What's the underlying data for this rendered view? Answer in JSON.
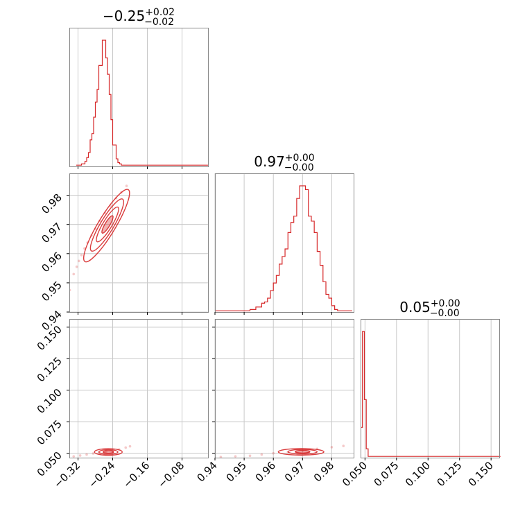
{
  "chart_data": {
    "type": "corner",
    "color": "#d62728",
    "grid": true,
    "parameters": [
      {
        "title": {
          "median": "−0.25",
          "plus": "+0.02",
          "minus": "−0.02"
        },
        "range": [
          -0.34,
          -0.02
        ],
        "ticks": [
          -0.32,
          -0.24,
          -0.16,
          -0.08
        ],
        "tick_labels": [
          "−0.32",
          "−0.24",
          "−0.16",
          "−0.08"
        ],
        "histogram": {
          "bin_edges": [
            -0.324,
            -0.32,
            -0.316,
            -0.312,
            -0.308,
            -0.304,
            -0.3,
            -0.296,
            -0.292,
            -0.288,
            -0.284,
            -0.28,
            -0.276,
            -0.272,
            -0.268,
            -0.264,
            -0.26,
            -0.256,
            -0.252,
            -0.248,
            -0.244,
            -0.24,
            -0.236,
            -0.232,
            -0.228,
            -0.224,
            -0.22,
            -0.216,
            -0.212,
            -0.208,
            -0.204,
            -0.2,
            -0.196,
            -0.192,
            -0.188,
            -0.184,
            -0.18,
            -0.176,
            -0.172,
            -0.168,
            -0.164,
            -0.16,
            -0.156,
            -0.152,
            -0.148,
            -0.144,
            -0.14,
            -0.136,
            -0.132,
            -0.128,
            -0.124,
            -0.12,
            -0.116,
            -0.112,
            -0.108,
            -0.104,
            -0.1,
            -0.096,
            -0.092,
            -0.088,
            -0.084,
            -0.08,
            -0.076,
            -0.072,
            -0.068,
            -0.064,
            -0.06,
            -0.056,
            -0.052,
            -0.048,
            -0.044,
            -0.04,
            -0.036,
            -0.032,
            -0.028,
            -0.024,
            -0.02
          ],
          "counts": [
            1,
            1,
            1,
            2,
            2,
            4,
            7,
            11,
            21,
            26,
            39,
            51,
            61,
            80,
            80,
            100,
            100,
            86,
            73,
            57,
            37,
            17,
            17,
            6,
            3,
            2,
            1,
            1,
            1,
            1,
            1,
            1,
            1,
            1,
            1,
            1,
            1,
            1,
            1,
            1,
            1,
            1,
            1,
            1,
            1,
            1,
            1,
            1,
            1,
            1,
            1,
            1,
            1,
            1,
            1,
            1,
            1,
            1,
            1,
            1,
            1,
            1,
            1,
            1,
            1,
            1,
            1,
            1,
            1,
            1,
            1,
            1,
            1,
            1,
            1,
            1
          ]
        }
      },
      {
        "title": {
          "median": "0.97",
          "plus": "+0.00",
          "minus": "−0.00"
        },
        "range": [
          0.94,
          0.9875
        ],
        "ticks": [
          0.94,
          0.95,
          0.96,
          0.97,
          0.98
        ],
        "tick_labels": [
          "0.94",
          "0.95",
          "0.96",
          "0.97",
          "0.98"
        ],
        "histogram": {
          "bin_edges": [
            0.94,
            0.941,
            0.942,
            0.943,
            0.944,
            0.945,
            0.946,
            0.947,
            0.948,
            0.949,
            0.95,
            0.951,
            0.952,
            0.953,
            0.954,
            0.955,
            0.956,
            0.957,
            0.958,
            0.959,
            0.96,
            0.961,
            0.962,
            0.963,
            0.964,
            0.965,
            0.966,
            0.967,
            0.968,
            0.969,
            0.97,
            0.971,
            0.972,
            0.973,
            0.974,
            0.975,
            0.976,
            0.977,
            0.978,
            0.979,
            0.98,
            0.981,
            0.982,
            0.983,
            0.984,
            0.985,
            0.986,
            0.987
          ],
          "counts": [
            1,
            1,
            1,
            1,
            1,
            1,
            1,
            1,
            1,
            1,
            1,
            1,
            2,
            2,
            4,
            4,
            7,
            8,
            11,
            17,
            23,
            29,
            38,
            44,
            50,
            63,
            71,
            76,
            90,
            100,
            100,
            97,
            76,
            72,
            63,
            48,
            37,
            24,
            14,
            11,
            5,
            2,
            1,
            1,
            1,
            1,
            1,
            1
          ]
        }
      },
      {
        "title": {
          "median": "0.05",
          "plus": "+0.00",
          "minus": "−0.00"
        },
        "range": [
          0.0465,
          0.1565
        ],
        "ticks": [
          0.05,
          0.075,
          0.1,
          0.125,
          0.15
        ],
        "tick_labels": [
          "0.050",
          "0.075",
          "0.100",
          "0.125",
          "0.150"
        ],
        "histogram": {
          "bin_edges": [
            0.0465,
            0.048,
            0.0495,
            0.051,
            0.0525,
            0.054,
            0.0555,
            0.057,
            0.0585,
            0.06,
            0.0615,
            0.063,
            0.0645,
            0.066,
            0.0675,
            0.069,
            0.0705,
            0.072,
            0.0735,
            0.075,
            0.0765,
            0.078,
            0.0795,
            0.081,
            0.0825,
            0.084,
            0.0855,
            0.087,
            0.0885,
            0.09,
            0.0915,
            0.093,
            0.0945,
            0.096,
            0.0975,
            0.099,
            0.1005,
            0.102,
            0.1035,
            0.105,
            0.1065,
            0.108,
            0.1095,
            0.111,
            0.1125,
            0.114,
            0.1155,
            0.117,
            0.1185,
            0.12,
            0.1215,
            0.123,
            0.1245,
            0.126,
            0.1275,
            0.129,
            0.1305,
            0.132,
            0.1335,
            0.135,
            0.1365,
            0.138,
            0.1395,
            0.141,
            0.1425,
            0.144,
            0.1455,
            0.147,
            0.1485,
            0.15,
            0.1515,
            0.153,
            0.1545,
            0.156,
            0.1575
          ],
          "counts": [
            24,
            100,
            46,
            7,
            1,
            1,
            1,
            1,
            1,
            1,
            1,
            1,
            1,
            1,
            1,
            1,
            1,
            1,
            1,
            1,
            1,
            1,
            1,
            1,
            1,
            1,
            1,
            1,
            1,
            1,
            1,
            1,
            1,
            1,
            1,
            1,
            1,
            1,
            1,
            1,
            1,
            1,
            1,
            1,
            1,
            1,
            1,
            1,
            1,
            1,
            1,
            1,
            1,
            1,
            1,
            1,
            1,
            1,
            1,
            1,
            1,
            1,
            1,
            1,
            1,
            1,
            1,
            1,
            1,
            1,
            1,
            1,
            1,
            1
          ]
        }
      }
    ],
    "pairs": [
      {
        "x_param": 0,
        "y_param": 1,
        "scatter": [
          [
            -0.344,
            0.945
          ],
          [
            -0.339,
            0.9475
          ],
          [
            -0.33,
            0.953
          ],
          [
            -0.323,
            0.9555
          ],
          [
            -0.318,
            0.9575
          ],
          [
            -0.312,
            0.9595
          ],
          [
            -0.305,
            0.9618
          ],
          [
            -0.298,
            0.9638
          ],
          [
            -0.289,
            0.9662
          ],
          [
            -0.28,
            0.9685
          ],
          [
            -0.27,
            0.9712
          ],
          [
            -0.258,
            0.974
          ],
          [
            -0.245,
            0.9765
          ],
          [
            -0.232,
            0.979
          ],
          [
            -0.22,
            0.981
          ],
          [
            -0.208,
            0.9832
          ]
        ],
        "contours": [
          {
            "center": [
              -0.252,
              0.97
            ],
            "rx": 0.012,
            "ry": 0.0016,
            "angle": 0.95
          },
          {
            "center": [
              -0.252,
              0.97
            ],
            "rx": 0.024,
            "ry": 0.003,
            "angle": 0.95
          },
          {
            "center": [
              -0.253,
              0.9698
            ],
            "rx": 0.036,
            "ry": 0.0044,
            "angle": 0.95
          },
          {
            "center": [
              -0.254,
              0.9696
            ],
            "rx": 0.05,
            "ry": 0.0058,
            "angle": 0.95
          }
        ]
      },
      {
        "x_param": 0,
        "y_param": 2,
        "scatter": [
          [
            -0.344,
            0.047
          ],
          [
            -0.33,
            0.0475
          ],
          [
            -0.315,
            0.0482
          ],
          [
            -0.3,
            0.049
          ],
          [
            -0.285,
            0.0498
          ],
          [
            -0.27,
            0.0505
          ],
          [
            -0.255,
            0.0512
          ],
          [
            -0.24,
            0.052
          ],
          [
            -0.225,
            0.053
          ],
          [
            -0.21,
            0.0545
          ],
          [
            -0.2,
            0.0555
          ]
        ],
        "contours": [
          {
            "center": [
              -0.25,
              0.051
            ],
            "rx": 0.012,
            "ry": 0.001,
            "angle": 0
          },
          {
            "center": [
              -0.25,
              0.051
            ],
            "rx": 0.022,
            "ry": 0.0018,
            "angle": 0
          },
          {
            "center": [
              -0.25,
              0.051
            ],
            "rx": 0.032,
            "ry": 0.0026,
            "angle": 0
          }
        ]
      },
      {
        "x_param": 1,
        "y_param": 2,
        "scatter": [
          [
            0.942,
            0.047
          ],
          [
            0.947,
            0.0475
          ],
          [
            0.952,
            0.048
          ],
          [
            0.956,
            0.049
          ],
          [
            0.96,
            0.05
          ],
          [
            0.965,
            0.051
          ],
          [
            0.97,
            0.052
          ],
          [
            0.975,
            0.0535
          ],
          [
            0.98,
            0.0548
          ],
          [
            0.984,
            0.0558
          ]
        ],
        "contours": [
          {
            "center": [
              0.97,
              0.0512
            ],
            "rx": 0.0025,
            "ry": 0.001,
            "angle": 0
          },
          {
            "center": [
              0.97,
              0.0512
            ],
            "rx": 0.005,
            "ry": 0.0018,
            "angle": 0
          },
          {
            "center": [
              0.9695,
              0.0511
            ],
            "rx": 0.0078,
            "ry": 0.0026,
            "angle": 0
          }
        ]
      }
    ]
  }
}
